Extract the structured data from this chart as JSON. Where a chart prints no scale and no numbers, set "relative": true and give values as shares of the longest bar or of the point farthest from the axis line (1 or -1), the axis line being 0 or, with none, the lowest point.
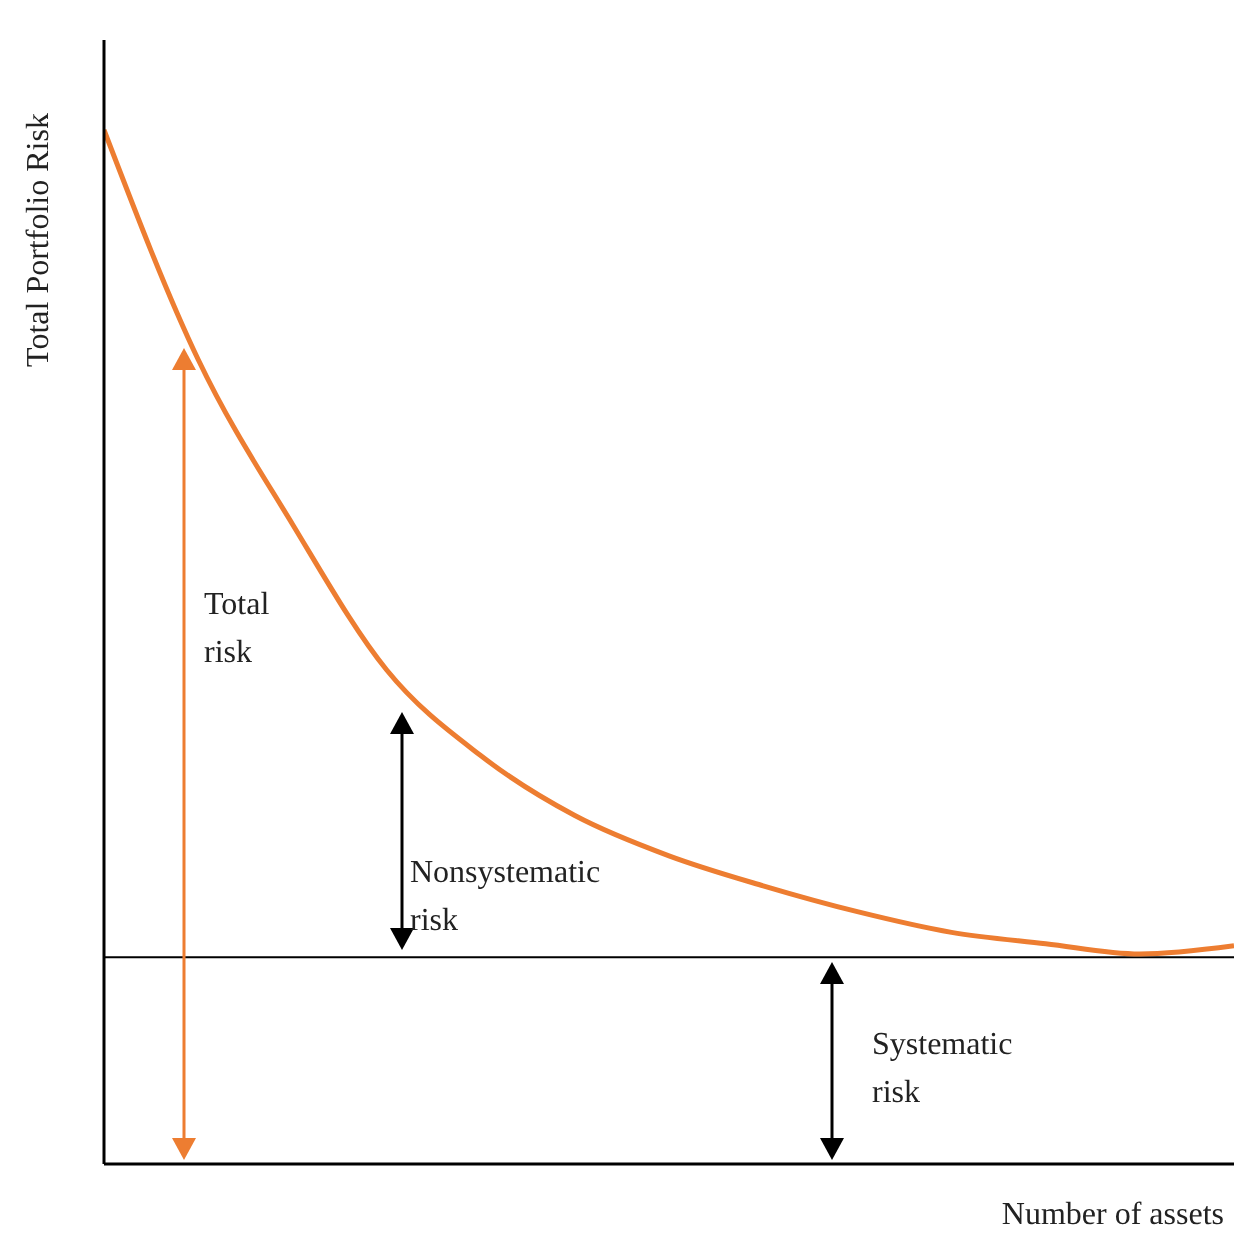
{
  "chart_data": {
    "type": "line",
    "relative": true,
    "xlabel": "Number of assets",
    "ylabel": "Total Portfolio Risk",
    "categories": [
      null,
      null,
      null,
      null,
      null,
      null,
      null,
      null,
      null,
      null,
      null,
      null,
      null
    ],
    "series": [
      {
        "color": "#ed7d31",
        "values": [
          1,
          0.778,
          0.619,
          0.478,
          0.395,
          0.337,
          0.298,
          0.269,
          0.244,
          0.224,
          0.213,
          0.203,
          0.211
        ]
      }
    ],
    "ref_lines": [
      {
        "axis": "y",
        "value": 0.2,
        "color": "#000000"
      }
    ],
    "annotations": [
      "Total risk",
      "Nonsystematic risk",
      "Systematic risk"
    ],
    "grid": false,
    "legend": false,
    "marker": "none",
    "line_style": "solid"
  }
}
